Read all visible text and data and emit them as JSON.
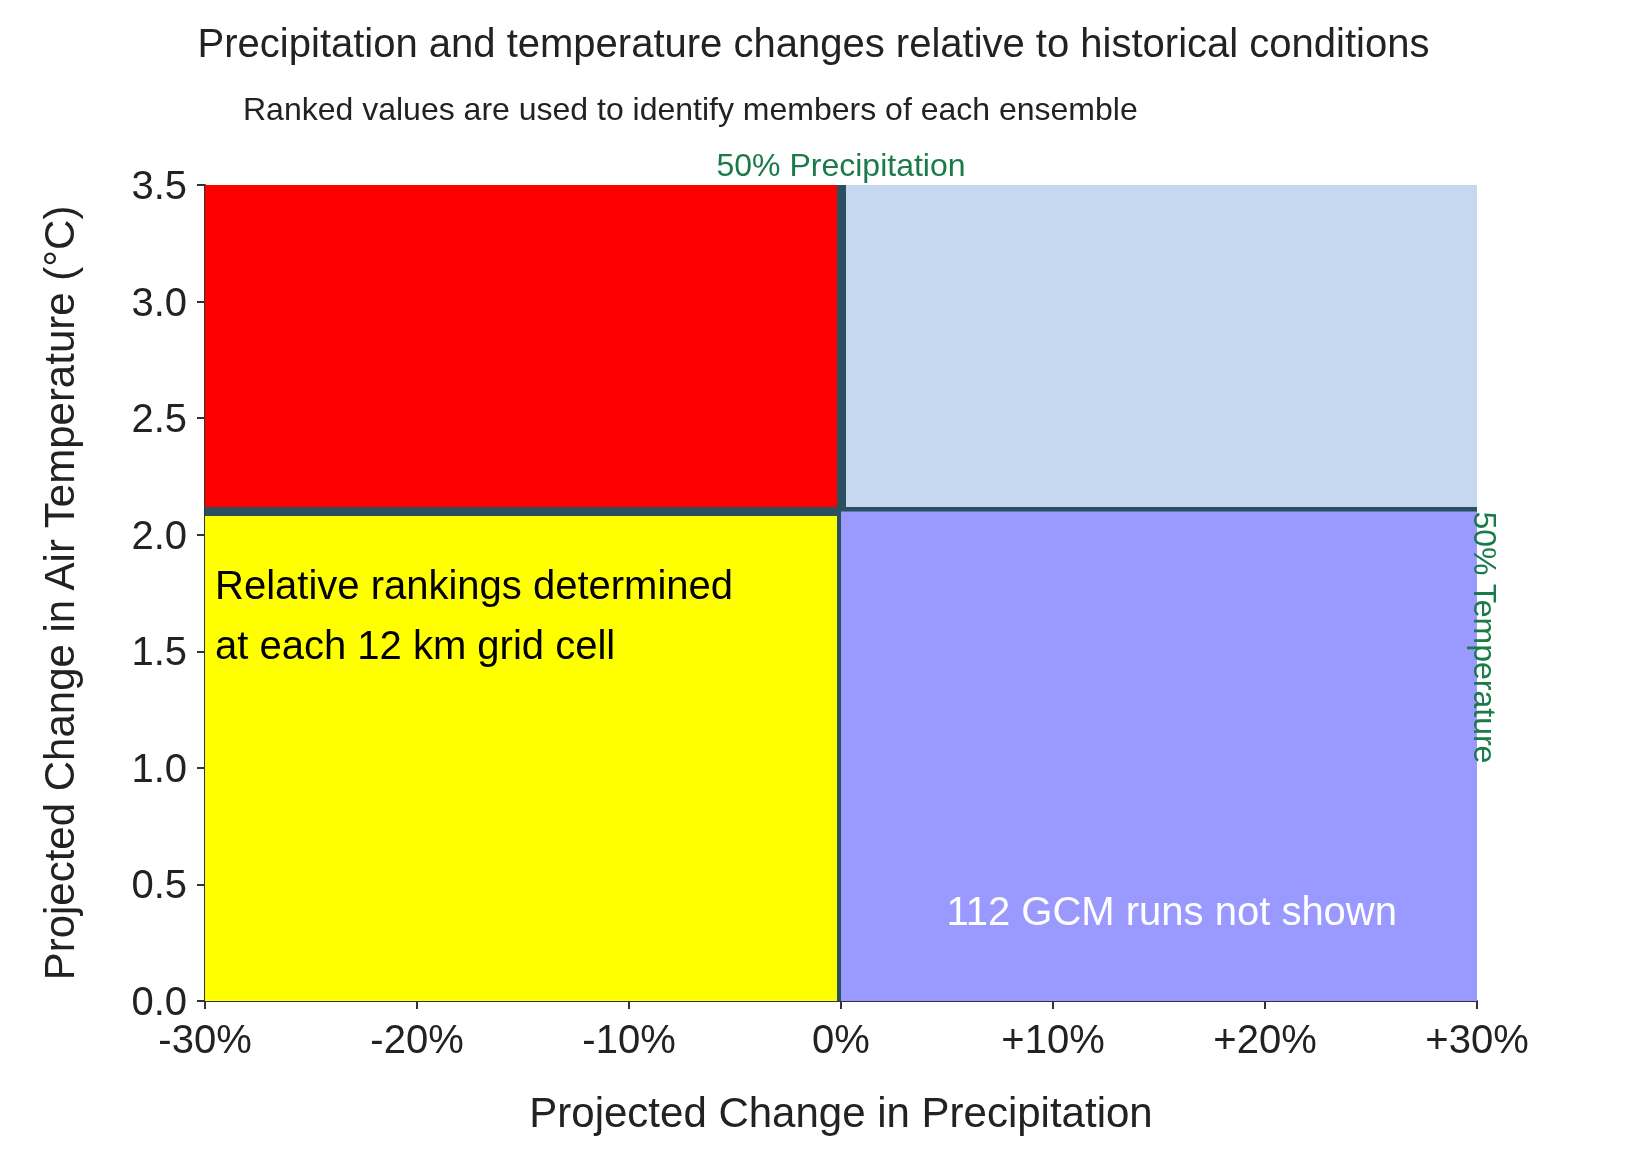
{
  "chart_data": {
    "type": "area",
    "title": "Precipitation and temperature changes relative to historical conditions",
    "subtitle": "Ranked values are used to identify members of each ensemble",
    "xlabel": "Projected Change in Precipitation",
    "ylabel": "Projected Change in Air Temperature (°C)",
    "relative": false,
    "series": [
      {
        "color": "#ff0000",
        "x": [
          -30,
          0
        ],
        "values": [
          3.5,
          3.5
        ]
      },
      {
        "color": "#ffff00",
        "x": [
          -30,
          0
        ],
        "values": [
          2.1,
          2.1
        ]
      },
      {
        "color": "#c5d8f0",
        "x": [
          0,
          30
        ],
        "values": [
          3.5,
          3.5
        ]
      },
      {
        "color": "#9999ff",
        "x": [
          0,
          30
        ],
        "values": [
          2.1,
          2.1
        ]
      }
    ],
    "xlim": [
      -30,
      30
    ],
    "xticks": [
      {
        "value": -30,
        "label": "-30%"
      },
      {
        "value": -20,
        "label": "-20%"
      },
      {
        "value": -10,
        "label": "-10%"
      },
      {
        "value": 0,
        "label": "0%"
      },
      {
        "value": 10,
        "label": "+10%"
      },
      {
        "value": 20,
        "label": "+20%"
      },
      {
        "value": 30,
        "label": "+30%"
      }
    ],
    "ylim": [
      0,
      3.5
    ],
    "yticks": [
      {
        "value": 0,
        "label": "0.0"
      },
      {
        "value": 0.5,
        "label": "0.5"
      },
      {
        "value": 1,
        "label": "1.0"
      },
      {
        "value": 1.5,
        "label": "1.5"
      },
      {
        "value": 2,
        "label": "2.0"
      },
      {
        "value": 2.5,
        "label": "2.5"
      },
      {
        "value": 3,
        "label": "3.0"
      },
      {
        "value": 3.5,
        "label": "3.5"
      }
    ],
    "ref_lines": [
      {
        "axis": "x",
        "value": 0,
        "label": "50% Precipitation",
        "color": "#2a5060"
      },
      {
        "axis": "y",
        "value": 2.1,
        "label": "50% Temperature",
        "color": "#2a5060"
      }
    ],
    "annotations": [
      "Relative rankings determined\nat each 12 km grid cell",
      "112 GCM runs not shown"
    ],
    "grid": false,
    "marker": "none"
  }
}
